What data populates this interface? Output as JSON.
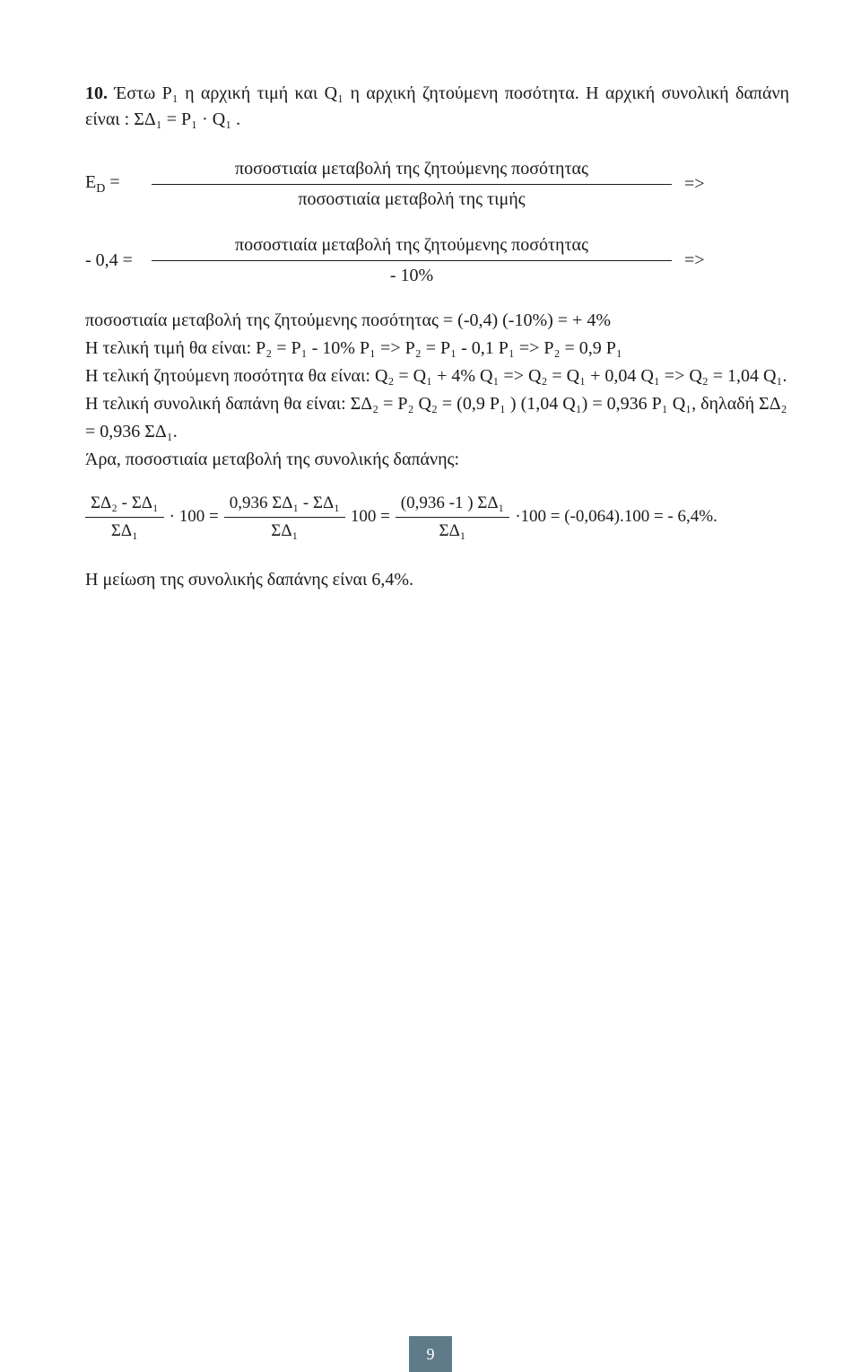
{
  "problem": {
    "number": "10.",
    "intro": "Έστω P₁ η αρχική τιμή και Q₁ η αρχική ζητούμενη ποσότητα. Η αρχική συνολική δαπάνη είναι : ΣΔ₁ =  P₁ · Q₁ ."
  },
  "frac1": {
    "left": "E",
    "left_sub": "D",
    "eq": " = ",
    "num": "ποσοστιαία μεταβολή της ζητούμενης ποσότητας",
    "den": "ποσοστιαία μεταβολή της τιμής",
    "right": "=>"
  },
  "frac2": {
    "left": "- 0,4 = ",
    "num": "ποσοστιαία μεταβολή της ζητούμενης ποσότητας",
    "den": "- 10%",
    "right": "=>"
  },
  "body": {
    "line1": "ποσοστιαία μεταβολή της ζητούμενης ποσότητας = (-0,4) (-10%) = + 4%",
    "line2": "Η τελική τιμή θα είναι: P₂ = P₁ - 10% P₁  => P₂ = P₁ - 0,1 P₁ => P₂ = 0,9 P₁",
    "line3": "Η τελική ζητούμενη ποσότητα θα είναι: Q₂ = Q₁ + 4% Q₁  => Q₂ = Q₁ + 0,04 Q₁  => Q₂ = 1,04 Q₁.",
    "line4": "Η τελική συνολική δαπάνη θα είναι: ΣΔ₂ = P₂ Q₂ = (0,9 P₁ ) (1,04 Q₁) = 0,936 P₁ Q₁,  δηλαδή ΣΔ₂ = 0,936  ΣΔ₁.",
    "line5": "Άρα, ποσοστιαία μεταβολή της συνολικής δαπάνης:"
  },
  "final": {
    "f1_num": "ΣΔ₂ - ΣΔ₁",
    "f1_den": "ΣΔ₁",
    "mid1": "· 100 = ",
    "f2_num": "0,936 ΣΔ₁ - ΣΔ₁",
    "f2_den": "ΣΔ₁",
    "mid2": " 100 = ",
    "f3_num": "(0,936 -1 ) ΣΔ₁",
    "f3_den": "ΣΔ₁",
    "tail": "·100 = (-0,064).100 = - 6,4%."
  },
  "conclusion": "Η μείωση της συνολικής δαπάνης είναι 6,4%.",
  "page_number": "9"
}
